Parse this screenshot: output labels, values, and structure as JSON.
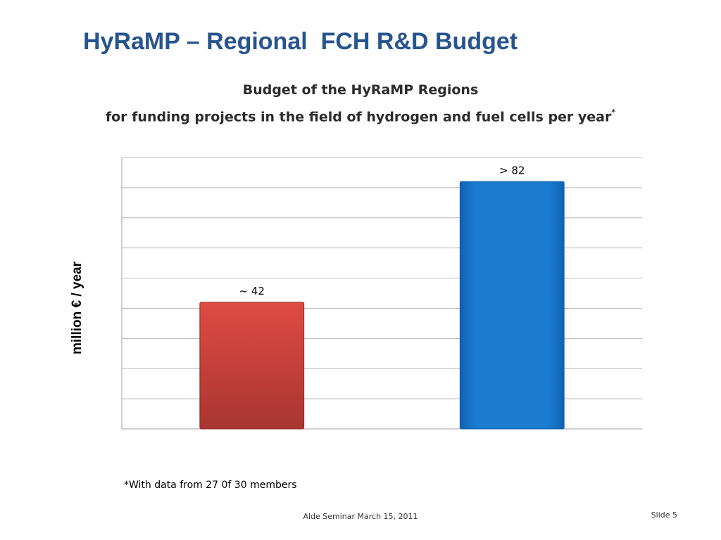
{
  "slide": {
    "title": "HyRaMP – Regional  FCH R&D Budget",
    "footnote": "*With data from 27 0f 30 members",
    "footer_text": "Alde Seminar March 15, 2011",
    "slide_number": "Slide 5"
  },
  "chart_data": {
    "type": "bar",
    "title": "Budget of the HyRaMP Regions",
    "subtitle": "for funding projects in the field of hydrogen and fuel cells per year",
    "subtitle_mark": "*",
    "xlabel": "",
    "ylabel": "million € / year",
    "ylim": [
      0,
      90
    ],
    "grid": true,
    "categories": [
      "",
      ""
    ],
    "values": [
      42,
      82
    ],
    "data_labels": [
      "~ 42",
      "> 82"
    ],
    "colors": [
      "#c8413a",
      "#1a7bd0"
    ]
  }
}
